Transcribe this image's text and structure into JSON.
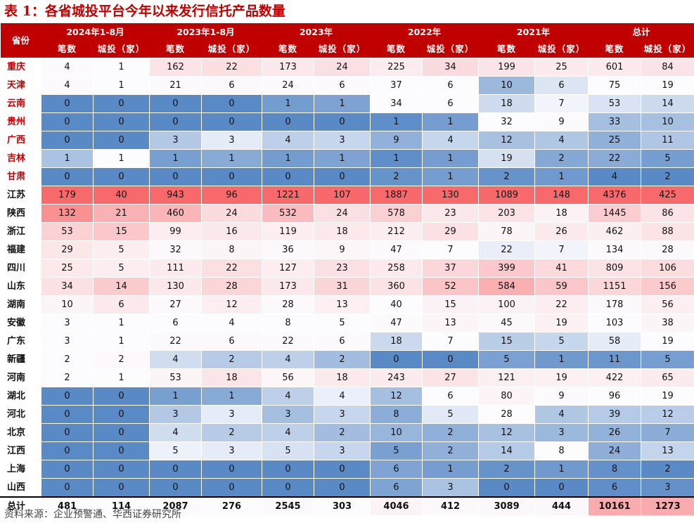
{
  "title": "表 1：各省城投平台今年以来发行信托产品数量",
  "header": {
    "province_label": "省份",
    "periods": [
      "2024年1-8月",
      "2023年1-8月",
      "2023年",
      "2022年",
      "2021年",
      "总计"
    ],
    "sub_labels": [
      "笔数",
      "城投（家）"
    ]
  },
  "red_provinces": [
    "重庆",
    "天津",
    "云南",
    "贵州",
    "广西",
    "吉林",
    "甘肃"
  ],
  "rows": [
    {
      "province": "重庆",
      "values": [
        4,
        1,
        162,
        22,
        173,
        24,
        225,
        34,
        199,
        25,
        601,
        84
      ]
    },
    {
      "province": "天津",
      "values": [
        4,
        1,
        21,
        6,
        24,
        6,
        37,
        6,
        10,
        6,
        75,
        19
      ]
    },
    {
      "province": "云南",
      "values": [
        0,
        0,
        0,
        0,
        1,
        1,
        34,
        6,
        18,
        7,
        53,
        14
      ]
    },
    {
      "province": "贵州",
      "values": [
        0,
        0,
        0,
        0,
        0,
        0,
        1,
        1,
        32,
        9,
        33,
        10
      ]
    },
    {
      "province": "广西",
      "values": [
        0,
        0,
        3,
        3,
        4,
        3,
        9,
        4,
        12,
        4,
        25,
        11
      ]
    },
    {
      "province": "吉林",
      "values": [
        1,
        1,
        1,
        1,
        1,
        1,
        1,
        1,
        19,
        2,
        22,
        5
      ]
    },
    {
      "province": "甘肃",
      "values": [
        0,
        0,
        0,
        0,
        0,
        0,
        2,
        1,
        2,
        1,
        4,
        2
      ]
    },
    {
      "province": "江苏",
      "values": [
        179,
        40,
        943,
        96,
        1221,
        107,
        1887,
        130,
        1089,
        148,
        4376,
        425
      ]
    },
    {
      "province": "陕西",
      "values": [
        132,
        21,
        460,
        24,
        532,
        24,
        578,
        23,
        203,
        18,
        1445,
        86
      ]
    },
    {
      "province": "浙江",
      "values": [
        53,
        15,
        99,
        16,
        119,
        18,
        212,
        29,
        78,
        26,
        462,
        88
      ]
    },
    {
      "province": "福建",
      "values": [
        29,
        5,
        32,
        8,
        36,
        9,
        47,
        7,
        22,
        7,
        134,
        28
      ]
    },
    {
      "province": "四川",
      "values": [
        25,
        5,
        111,
        22,
        127,
        23,
        258,
        37,
        399,
        41,
        809,
        106
      ]
    },
    {
      "province": "山东",
      "values": [
        34,
        14,
        130,
        28,
        173,
        31,
        360,
        52,
        584,
        59,
        1151,
        156
      ]
    },
    {
      "province": "湖南",
      "values": [
        10,
        6,
        27,
        12,
        28,
        13,
        40,
        15,
        100,
        22,
        178,
        56
      ]
    },
    {
      "province": "安徽",
      "values": [
        3,
        1,
        6,
        4,
        8,
        5,
        47,
        13,
        45,
        19,
        103,
        38
      ]
    },
    {
      "province": "广东",
      "values": [
        3,
        1,
        22,
        6,
        22,
        6,
        18,
        7,
        15,
        5,
        58,
        19
      ]
    },
    {
      "province": "新疆",
      "values": [
        2,
        2,
        4,
        2,
        4,
        2,
        0,
        0,
        5,
        1,
        11,
        5
      ]
    },
    {
      "province": "河南",
      "values": [
        2,
        1,
        53,
        18,
        56,
        18,
        243,
        27,
        121,
        19,
        422,
        65
      ]
    },
    {
      "province": "湖北",
      "values": [
        0,
        0,
        1,
        1,
        4,
        4,
        12,
        6,
        80,
        9,
        96,
        19
      ]
    },
    {
      "province": "河北",
      "values": [
        0,
        0,
        3,
        3,
        3,
        3,
        8,
        5,
        28,
        4,
        39,
        12
      ]
    },
    {
      "province": "北京",
      "values": [
        0,
        0,
        4,
        2,
        4,
        2,
        10,
        2,
        12,
        3,
        26,
        7
      ]
    },
    {
      "province": "江西",
      "values": [
        0,
        0,
        5,
        3,
        5,
        3,
        5,
        2,
        14,
        8,
        24,
        13
      ]
    },
    {
      "province": "上海",
      "values": [
        0,
        0,
        0,
        0,
        0,
        0,
        6,
        1,
        2,
        1,
        8,
        2
      ]
    },
    {
      "province": "山西",
      "values": [
        0,
        0,
        0,
        0,
        0,
        0,
        6,
        3,
        0,
        0,
        6,
        3
      ]
    }
  ],
  "total": {
    "province": "总计",
    "values": [
      481,
      114,
      2087,
      276,
      2545,
      303,
      4046,
      412,
      3089,
      444,
      10161,
      1273
    ]
  },
  "footer": "资料来源：企业预警通、华西证券研究所",
  "colors": {
    "header_bg": "#c00000",
    "low": "#5a8ac6",
    "mid": "#fcfcff",
    "high": "#f8696b",
    "red_province_text": "#c00000"
  }
}
